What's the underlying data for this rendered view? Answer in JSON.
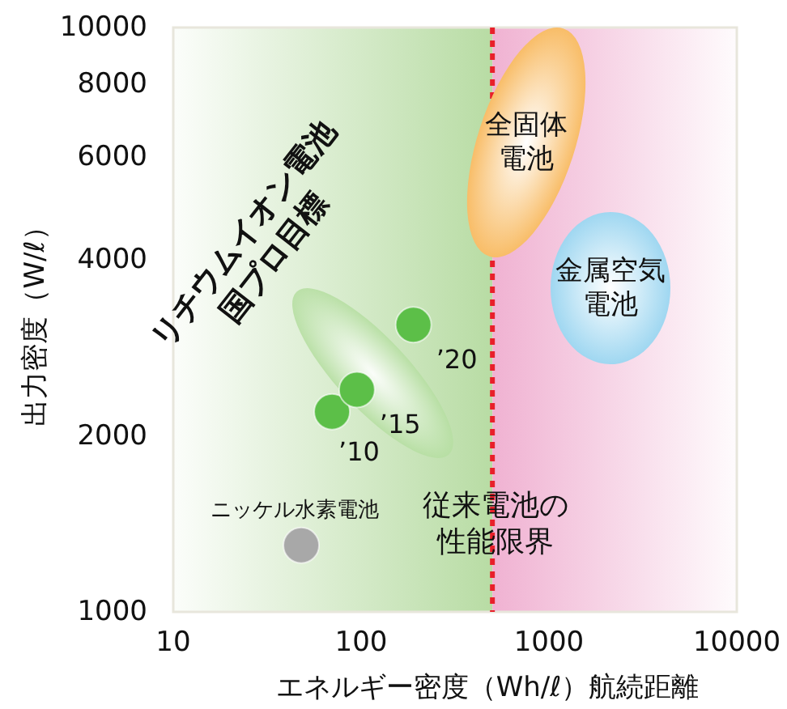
{
  "chart_data": {
    "type": "scatter",
    "xlabel": "エネルギー密度（Wh/ℓ）航続距離",
    "ylabel": "出力密度（W/ℓ）",
    "log": "xy",
    "xlim": [
      10,
      10000
    ],
    "ylim": [
      1000,
      10000
    ],
    "xticks": [
      10,
      100,
      1000,
      10000
    ],
    "yticks": [
      1000,
      2000,
      4000,
      6000,
      8000,
      10000
    ],
    "grid": false,
    "marker": "circle",
    "series": [
      {
        "color": "#a8a8a8",
        "x": [
          48
        ],
        "values": [
          1300
        ]
      },
      {
        "color": "#5cbf48",
        "x": [
          70,
          95,
          190
        ],
        "values": [
          2200,
          2400,
          3100
        ]
      }
    ],
    "bands": [
      {
        "axis": "x",
        "from": 10,
        "to": 500,
        "color": "#b8dca4"
      },
      {
        "axis": "x",
        "from": 500,
        "to": 10000,
        "color": "#f0b2d2"
      }
    ],
    "ref_lines": [
      {
        "axis": "x",
        "value": 500,
        "label": "従来電池の性能限界",
        "color": "#e8202a",
        "line_style": "dotted"
      }
    ],
    "annotations": [
      "全固体電池",
      "金属空気電池",
      "リチウムイオン電池国プロ目標",
      "ニッケル水素電池",
      {
        "text": "’10",
        "x": 70,
        "y": 2200
      },
      {
        "text": "’15",
        "x": 95,
        "y": 2400
      },
      {
        "text": "’20",
        "x": 190,
        "y": 3100
      }
    ]
  }
}
